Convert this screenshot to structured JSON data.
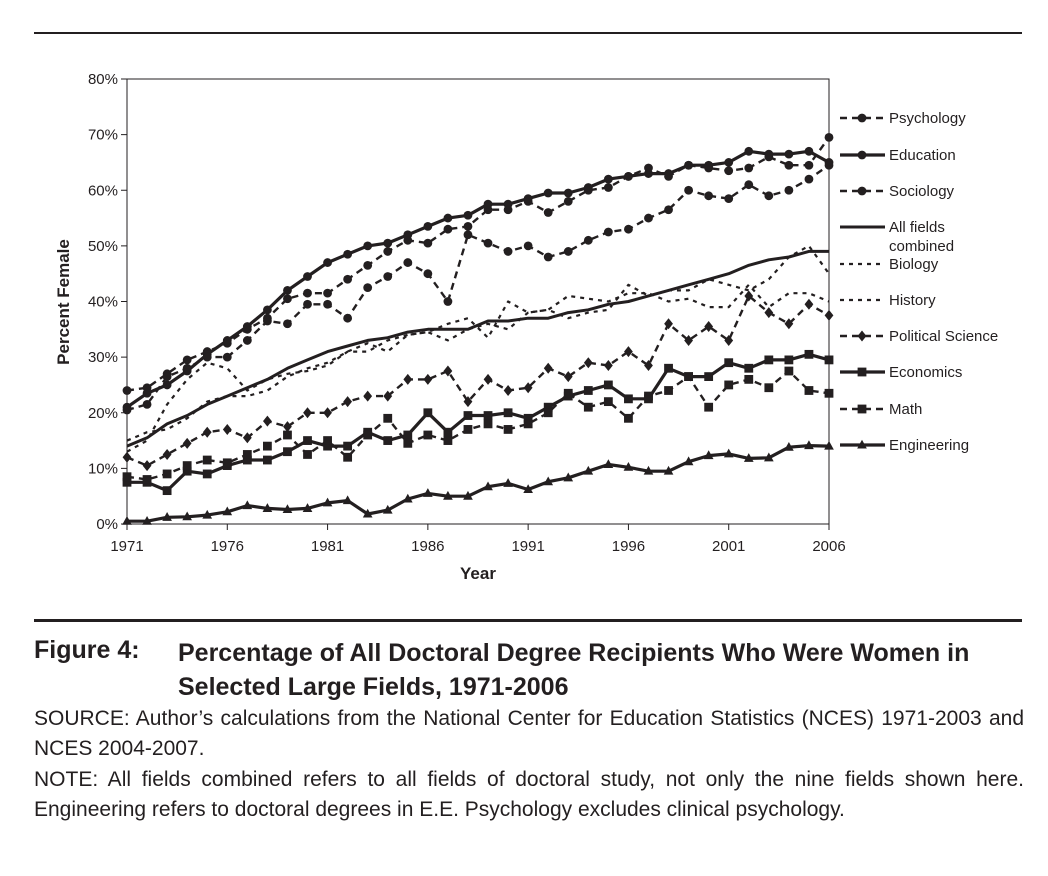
{
  "figure": {
    "label": "Figure 4:",
    "title": "Percentage of All Doctoral Degree Recipients Who Were Women in Selected Large Fields, 1971-2006",
    "source": "SOURCE: Author’s calculations from the National Center for Education Statistics (NCES) 1971-2003 and NCES 2004-2007.",
    "note": "NOTE: All fields combined refers to all fields of doctoral study, not only the nine fields shown here. Engineering refers to doctoral degrees in E.E. Psychology excludes clinical psychology."
  },
  "chart_data": {
    "type": "line",
    "xlabel": "Year",
    "ylabel": "Percent Female",
    "xlim": [
      1971,
      2006
    ],
    "ylim": [
      0,
      80
    ],
    "x_ticks": [
      "1971",
      "1976",
      "1981",
      "1986",
      "1991",
      "1996",
      "2001",
      "2006"
    ],
    "y_ticks": [
      "0%",
      "10%",
      "20%",
      "30%",
      "40%",
      "50%",
      "60%",
      "70%",
      "80%"
    ],
    "legend_position": "right",
    "grid": false,
    "x": [
      1971,
      1972,
      1973,
      1974,
      1975,
      1976,
      1977,
      1978,
      1979,
      1980,
      1981,
      1982,
      1983,
      1984,
      1985,
      1986,
      1987,
      1988,
      1989,
      1990,
      1991,
      1992,
      1993,
      1994,
      1995,
      1996,
      1997,
      1998,
      1999,
      2000,
      2001,
      2002,
      2003,
      2004,
      2005,
      2006
    ],
    "series": [
      {
        "name": "Psychology",
        "line": "dashed",
        "marker": "circle",
        "values": [
          24,
          24.5,
          27,
          29.5,
          31,
          32.5,
          35,
          37,
          40.5,
          41.5,
          41.5,
          44,
          46.5,
          49,
          51,
          50.5,
          53,
          53.5,
          56.5,
          56.5,
          58,
          56,
          58,
          60,
          60.5,
          62.5,
          64,
          62.5,
          64.5,
          64,
          63.5,
          64,
          66,
          64.5,
          64.5,
          69.5
        ]
      },
      {
        "name": "Education",
        "line": "solid",
        "marker": "circle",
        "values": [
          21,
          23.5,
          25,
          27.5,
          30.5,
          33,
          35.5,
          38.5,
          42,
          44.5,
          47,
          48.5,
          50,
          50.5,
          52,
          53.5,
          55,
          55.5,
          57.5,
          57.5,
          58.5,
          59.5,
          59.5,
          60.5,
          62,
          62.5,
          63,
          63,
          64.5,
          64.5,
          65,
          67,
          66.5,
          66.5,
          67,
          65
        ]
      },
      {
        "name": "Sociology",
        "line": "dashed",
        "marker": "circle",
        "values": [
          20.5,
          21.5,
          26.5,
          28,
          30,
          30,
          33,
          36.5,
          36,
          39.5,
          39.5,
          37,
          42.5,
          44.5,
          47,
          45,
          40,
          52,
          50.5,
          49,
          50,
          48,
          49,
          51,
          52.5,
          53,
          55,
          56.5,
          60,
          59,
          58.5,
          61,
          59,
          60,
          62,
          64.5
        ]
      },
      {
        "name": "All fields combined",
        "line": "solid",
        "marker": "none",
        "values": [
          14,
          15.5,
          18,
          19.5,
          21.5,
          23,
          24.5,
          26,
          28,
          29.5,
          31,
          32,
          33,
          33.5,
          34.5,
          35,
          35,
          35,
          36.5,
          36.5,
          37,
          37,
          38,
          38.5,
          39.5,
          40,
          41,
          42,
          43,
          44,
          45,
          46.5,
          47.5,
          48,
          49,
          49
        ]
      },
      {
        "name": "Biology",
        "line": "dotted",
        "marker": "none",
        "values": [
          15,
          16.5,
          17,
          19,
          22,
          23,
          23,
          24,
          26.5,
          28,
          29,
          31,
          32.5,
          31,
          34,
          34.5,
          33,
          35,
          36,
          35,
          38,
          38.5,
          37,
          38,
          38.5,
          43,
          41,
          42,
          42,
          44,
          43,
          42,
          44,
          48,
          50,
          45
        ]
      },
      {
        "name": "History",
        "line": "dotted",
        "marker": "none",
        "values": [
          13,
          15,
          21.5,
          26,
          29,
          28,
          24,
          26,
          27,
          27.5,
          28.5,
          31,
          31,
          33,
          34,
          34.5,
          36,
          37,
          33.5,
          40,
          38,
          38.5,
          41,
          40.5,
          40,
          41.5,
          41.5,
          40,
          40.5,
          39,
          39,
          43,
          39,
          41.5,
          41.5,
          40
        ]
      },
      {
        "name": "Political Science",
        "line": "dashed",
        "marker": "diamond",
        "values": [
          12,
          10.5,
          12.5,
          14.5,
          16.5,
          17,
          15.5,
          18.5,
          17.5,
          20,
          20,
          22,
          23,
          23,
          26,
          26,
          27.5,
          22,
          26,
          24,
          24.5,
          28,
          26.5,
          29,
          28.5,
          31,
          28.5,
          36,
          33,
          35.5,
          33,
          41,
          38,
          36,
          39.5,
          37.5
        ]
      },
      {
        "name": "Economics",
        "line": "solid",
        "marker": "square",
        "values": [
          7.5,
          7.5,
          6,
          9.5,
          9,
          10.5,
          11.5,
          11.5,
          13,
          15,
          14,
          14,
          16.5,
          15,
          16,
          20,
          16.5,
          19.5,
          19.5,
          20,
          19,
          21,
          23,
          24,
          25,
          22.5,
          22.5,
          28,
          26.5,
          26.5,
          29,
          28,
          29.5,
          29.5,
          30.5,
          29.5
        ]
      },
      {
        "name": "Math",
        "line": "dashed",
        "marker": "square",
        "values": [
          8.5,
          8,
          9,
          10.5,
          11.5,
          11,
          12.5,
          14,
          16,
          12.5,
          15,
          12,
          16,
          19,
          14.5,
          16,
          15,
          17,
          18,
          17,
          18,
          20,
          23.5,
          21,
          22,
          19,
          23,
          24,
          26.5,
          21,
          25,
          26,
          24.5,
          27.5,
          24,
          23.5
        ]
      },
      {
        "name": "Engineering",
        "line": "solid",
        "marker": "triangle",
        "values": [
          0.5,
          0.5,
          1.2,
          1.3,
          1.6,
          2.2,
          3.3,
          2.8,
          2.6,
          2.8,
          3.8,
          4.2,
          1.8,
          2.5,
          4.5,
          5.5,
          5,
          5,
          6.7,
          7.3,
          6.2,
          7.6,
          8.3,
          9.5,
          10.7,
          10.2,
          9.5,
          9.5,
          11.2,
          12.3,
          12.6,
          11.8,
          11.9,
          13.8,
          14.1,
          14
        ]
      }
    ]
  }
}
